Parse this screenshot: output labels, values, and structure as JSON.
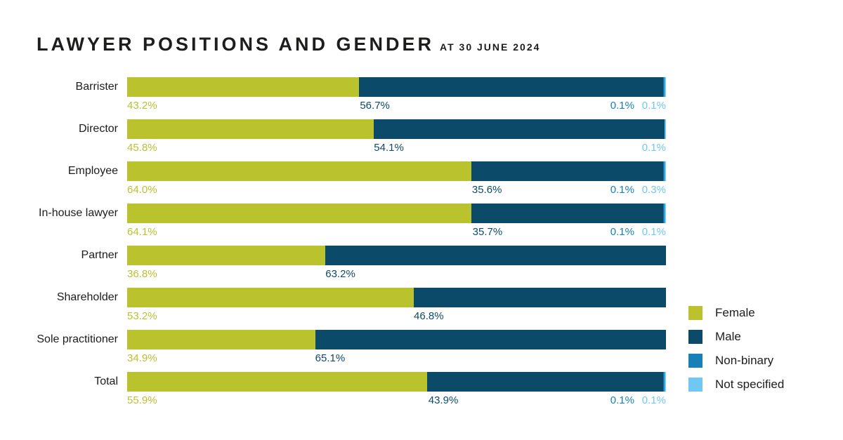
{
  "title": "LAWYER POSITIONS AND GENDER",
  "subtitle": "AT 30 JUNE 2024",
  "colors": {
    "female": "#bac32e",
    "male": "#0c4a69",
    "non_binary": "#1780b6",
    "not_specified": "#70c7f2",
    "title_text": "#1d1d1b"
  },
  "legend": {
    "items": [
      {
        "key": "female",
        "label": "Female"
      },
      {
        "key": "male",
        "label": "Male"
      },
      {
        "key": "non_binary",
        "label": "Non-binary"
      },
      {
        "key": "not_specified",
        "label": "Not specified"
      }
    ]
  },
  "chart_data": {
    "type": "bar",
    "orientation": "horizontal-stacked",
    "unit": "%",
    "title": "LAWYER POSITIONS AND GENDER",
    "subtitle": "AT 30 JUNE 2024",
    "xlim": [
      0,
      100
    ],
    "grid": false,
    "legend_position": "right-bottom",
    "categories": [
      "Barrister",
      "Director",
      "Employee",
      "In-house lawyer",
      "Partner",
      "Shareholder",
      "Sole practitioner",
      "Total"
    ],
    "series": [
      {
        "name": "Female",
        "key": "female",
        "values": [
          43.2,
          45.8,
          64.0,
          64.1,
          36.8,
          53.2,
          34.9,
          55.9
        ]
      },
      {
        "name": "Male",
        "key": "male",
        "values": [
          56.7,
          54.1,
          35.6,
          35.7,
          63.2,
          46.8,
          65.1,
          43.9
        ]
      },
      {
        "name": "Non-binary",
        "key": "non_binary",
        "values": [
          0.1,
          null,
          0.1,
          0.1,
          null,
          null,
          null,
          0.1
        ]
      },
      {
        "name": "Not specified",
        "key": "not_specified",
        "values": [
          0.1,
          0.1,
          0.3,
          0.1,
          null,
          null,
          null,
          0.1
        ]
      }
    ],
    "rows": [
      {
        "category": "Barrister",
        "female": {
          "value": 43.2,
          "label": "43.2%"
        },
        "male": {
          "value": 56.7,
          "label": "56.7%"
        },
        "non_binary": {
          "value": 0.1,
          "label": "0.1%"
        },
        "not_specified": {
          "value": 0.1,
          "label": "0.1%"
        }
      },
      {
        "category": "Director",
        "female": {
          "value": 45.8,
          "label": "45.8%"
        },
        "male": {
          "value": 54.1,
          "label": "54.1%"
        },
        "non_binary": null,
        "not_specified": {
          "value": 0.1,
          "label": "0.1%"
        }
      },
      {
        "category": "Employee",
        "female": {
          "value": 64.0,
          "label": "64.0%"
        },
        "male": {
          "value": 35.6,
          "label": "35.6%"
        },
        "non_binary": {
          "value": 0.1,
          "label": "0.1%"
        },
        "not_specified": {
          "value": 0.3,
          "label": "0.3%"
        }
      },
      {
        "category": "In-house lawyer",
        "female": {
          "value": 64.1,
          "label": "64.1%"
        },
        "male": {
          "value": 35.7,
          "label": "35.7%"
        },
        "non_binary": {
          "value": 0.1,
          "label": "0.1%"
        },
        "not_specified": {
          "value": 0.1,
          "label": "0.1%"
        }
      },
      {
        "category": "Partner",
        "female": {
          "value": 36.8,
          "label": "36.8%"
        },
        "male": {
          "value": 63.2,
          "label": "63.2%"
        },
        "non_binary": null,
        "not_specified": null
      },
      {
        "category": "Shareholder",
        "female": {
          "value": 53.2,
          "label": "53.2%"
        },
        "male": {
          "value": 46.8,
          "label": "46.8%"
        },
        "non_binary": null,
        "not_specified": null
      },
      {
        "category": "Sole practitioner",
        "female": {
          "value": 34.9,
          "label": "34.9%"
        },
        "male": {
          "value": 65.1,
          "label": "65.1%"
        },
        "non_binary": null,
        "not_specified": null
      },
      {
        "category": "Total",
        "female": {
          "value": 55.9,
          "label": "55.9%"
        },
        "male": {
          "value": 43.9,
          "label": "43.9%"
        },
        "non_binary": {
          "value": 0.1,
          "label": "0.1%"
        },
        "not_specified": {
          "value": 0.1,
          "label": "0.1%"
        }
      }
    ]
  }
}
